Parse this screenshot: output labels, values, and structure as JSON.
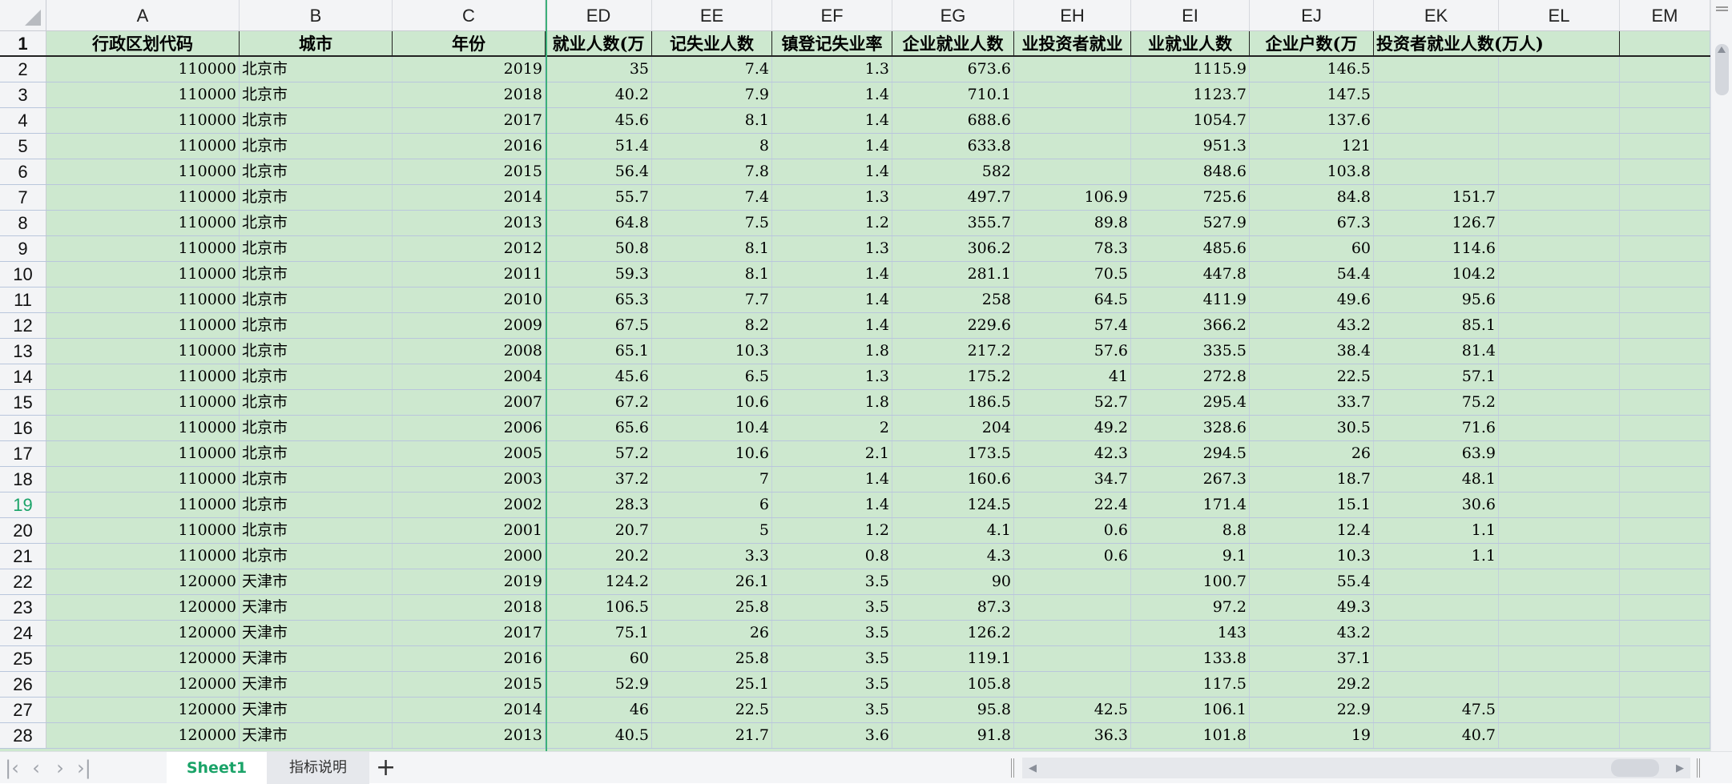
{
  "columns": [
    "A",
    "B",
    "C",
    "ED",
    "EE",
    "EF",
    "EG",
    "EH",
    "EI",
    "EJ",
    "EK",
    "EL",
    "EM"
  ],
  "header_row": [
    "行政区划代码",
    "城市",
    "年份",
    "就业人数(万",
    "记失业人数",
    "镇登记失业率",
    "企业就业人数",
    "业投资者就业",
    "业就业人数",
    "企业户数(万",
    "投资者就业人数(万人)",
    "",
    ""
  ],
  "selected_row": 19,
  "rows": [
    [
      "110000",
      "北京市",
      "2019",
      "35",
      "7.4",
      "1.3",
      "673.6",
      "",
      "1115.9",
      "146.5",
      ""
    ],
    [
      "110000",
      "北京市",
      "2018",
      "40.2",
      "7.9",
      "1.4",
      "710.1",
      "",
      "1123.7",
      "147.5",
      ""
    ],
    [
      "110000",
      "北京市",
      "2017",
      "45.6",
      "8.1",
      "1.4",
      "688.6",
      "",
      "1054.7",
      "137.6",
      ""
    ],
    [
      "110000",
      "北京市",
      "2016",
      "51.4",
      "8",
      "1.4",
      "633.8",
      "",
      "951.3",
      "121",
      ""
    ],
    [
      "110000",
      "北京市",
      "2015",
      "56.4",
      "7.8",
      "1.4",
      "582",
      "",
      "848.6",
      "103.8",
      ""
    ],
    [
      "110000",
      "北京市",
      "2014",
      "55.7",
      "7.4",
      "1.3",
      "497.7",
      "106.9",
      "725.6",
      "84.8",
      "151.7"
    ],
    [
      "110000",
      "北京市",
      "2013",
      "64.8",
      "7.5",
      "1.2",
      "355.7",
      "89.8",
      "527.9",
      "67.3",
      "126.7"
    ],
    [
      "110000",
      "北京市",
      "2012",
      "50.8",
      "8.1",
      "1.3",
      "306.2",
      "78.3",
      "485.6",
      "60",
      "114.6"
    ],
    [
      "110000",
      "北京市",
      "2011",
      "59.3",
      "8.1",
      "1.4",
      "281.1",
      "70.5",
      "447.8",
      "54.4",
      "104.2"
    ],
    [
      "110000",
      "北京市",
      "2010",
      "65.3",
      "7.7",
      "1.4",
      "258",
      "64.5",
      "411.9",
      "49.6",
      "95.6"
    ],
    [
      "110000",
      "北京市",
      "2009",
      "67.5",
      "8.2",
      "1.4",
      "229.6",
      "57.4",
      "366.2",
      "43.2",
      "85.1"
    ],
    [
      "110000",
      "北京市",
      "2008",
      "65.1",
      "10.3",
      "1.8",
      "217.2",
      "57.6",
      "335.5",
      "38.4",
      "81.4"
    ],
    [
      "110000",
      "北京市",
      "2004",
      "45.6",
      "6.5",
      "1.3",
      "175.2",
      "41",
      "272.8",
      "22.5",
      "57.1"
    ],
    [
      "110000",
      "北京市",
      "2007",
      "67.2",
      "10.6",
      "1.8",
      "186.5",
      "52.7",
      "295.4",
      "33.7",
      "75.2"
    ],
    [
      "110000",
      "北京市",
      "2006",
      "65.6",
      "10.4",
      "2",
      "204",
      "49.2",
      "328.6",
      "30.5",
      "71.6"
    ],
    [
      "110000",
      "北京市",
      "2005",
      "57.2",
      "10.6",
      "2.1",
      "173.5",
      "42.3",
      "294.5",
      "26",
      "63.9"
    ],
    [
      "110000",
      "北京市",
      "2003",
      "37.2",
      "7",
      "1.4",
      "160.6",
      "34.7",
      "267.3",
      "18.7",
      "48.1"
    ],
    [
      "110000",
      "北京市",
      "2002",
      "28.3",
      "6",
      "1.4",
      "124.5",
      "22.4",
      "171.4",
      "15.1",
      "30.6"
    ],
    [
      "110000",
      "北京市",
      "2001",
      "20.7",
      "5",
      "1.2",
      "4.1",
      "0.6",
      "8.8",
      "12.4",
      "1.1"
    ],
    [
      "110000",
      "北京市",
      "2000",
      "20.2",
      "3.3",
      "0.8",
      "4.3",
      "0.6",
      "9.1",
      "10.3",
      "1.1"
    ],
    [
      "120000",
      "天津市",
      "2019",
      "124.2",
      "26.1",
      "3.5",
      "90",
      "",
      "100.7",
      "55.4",
      ""
    ],
    [
      "120000",
      "天津市",
      "2018",
      "106.5",
      "25.8",
      "3.5",
      "87.3",
      "",
      "97.2",
      "49.3",
      ""
    ],
    [
      "120000",
      "天津市",
      "2017",
      "75.1",
      "26",
      "3.5",
      "126.2",
      "",
      "143",
      "43.2",
      ""
    ],
    [
      "120000",
      "天津市",
      "2016",
      "60",
      "25.8",
      "3.5",
      "119.1",
      "",
      "133.8",
      "37.1",
      ""
    ],
    [
      "120000",
      "天津市",
      "2015",
      "52.9",
      "25.1",
      "3.5",
      "105.8",
      "",
      "117.5",
      "29.2",
      ""
    ],
    [
      "120000",
      "天津市",
      "2014",
      "46",
      "22.5",
      "3.5",
      "95.8",
      "42.5",
      "106.1",
      "22.9",
      "47.5"
    ],
    [
      "120000",
      "天津市",
      "2013",
      "40.5",
      "21.7",
      "3.6",
      "91.8",
      "36.3",
      "101.8",
      "19",
      "40.7"
    ]
  ],
  "sheet_tabs": [
    {
      "label": "Sheet1",
      "active": true
    },
    {
      "label": "指标说明",
      "active": false
    }
  ],
  "add_sheet_label": "+",
  "accent_color": "#1aa368",
  "cell_fill": "#cde8cf"
}
